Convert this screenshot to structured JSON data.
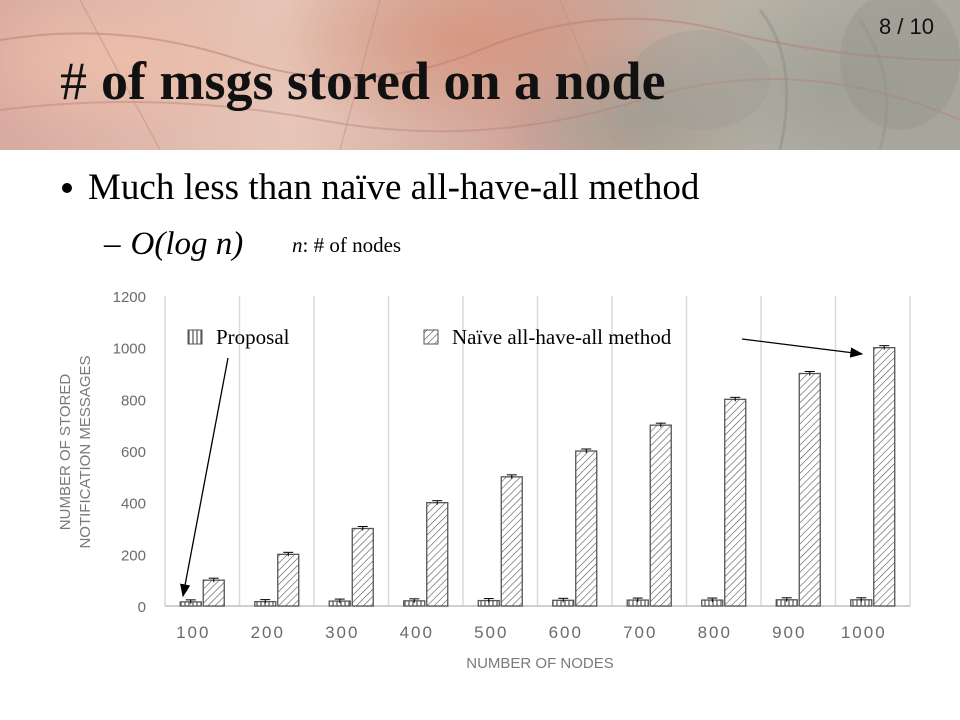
{
  "slide": {
    "page_number": "8 / 10",
    "title_hash": "#",
    "title_text": "of msgs stored on a node",
    "bullet": "Much less than naïve all-have-all method",
    "sub_dash": "–",
    "sub_expr": "O(log n)",
    "note_var": "n",
    "note_text": ": # of nodes"
  },
  "chart_data": {
    "type": "bar",
    "categories": [
      "100",
      "200",
      "300",
      "400",
      "500",
      "600",
      "700",
      "800",
      "900",
      "1000"
    ],
    "series": [
      {
        "name": "Proposal",
        "values": [
          16,
          17,
          19,
          20,
          21,
          22,
          23,
          23,
          24,
          24
        ],
        "pattern": "vertical-stripes"
      },
      {
        "name": "Naïve all-have-all method",
        "values": [
          100,
          200,
          300,
          400,
          500,
          600,
          700,
          800,
          900,
          1000
        ],
        "pattern": "diagonal-hatch"
      }
    ],
    "xlabel": "NUMBER OF NODES",
    "ylabel_lines": [
      "NUMBER OF STORED",
      "NOTIFICATION MESSAGES"
    ],
    "ylim": [
      0,
      1200
    ],
    "yticks": [
      "0",
      "200",
      "400",
      "600",
      "800",
      "1000",
      "1200"
    ],
    "grid": "vertical-category-separators",
    "legend_position": "top",
    "error_bars": true,
    "colors": {
      "bar_outline": "#555555",
      "grid": "#d9d9d9",
      "axis": "#bfbfbf",
      "tick_text": "#6b6b6b"
    }
  }
}
